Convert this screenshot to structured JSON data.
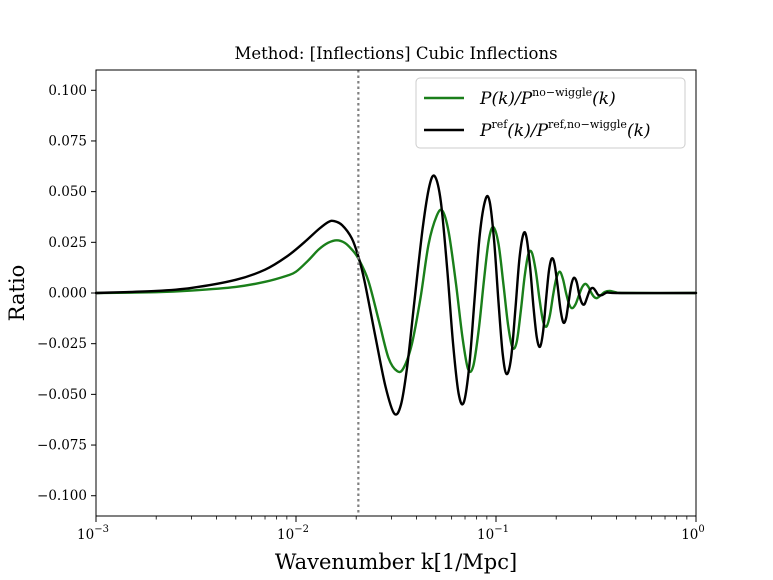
{
  "chart_data": {
    "type": "line",
    "title": "Method: [Inflections] Cubic Inflections",
    "xlabel": "Wavenumber k[1/Mpc]",
    "ylabel": "Ratio",
    "xscale": "log",
    "xlim": [
      0.001,
      1.0
    ],
    "ylim": [
      -0.11,
      0.11
    ],
    "yticks": [
      -0.1,
      -0.075,
      -0.05,
      -0.025,
      0.0,
      0.025,
      0.05,
      0.075,
      0.1
    ],
    "ytick_labels": [
      "−0.100",
      "−0.075",
      "−0.050",
      "−0.025",
      "0.000",
      "0.025",
      "0.050",
      "0.075",
      "0.100"
    ],
    "xticks": [
      0.001,
      0.01,
      0.1,
      1.0
    ],
    "xtick_labels": [
      {
        "base": "10",
        "exp": "−3"
      },
      {
        "base": "10",
        "exp": "−2"
      },
      {
        "base": "10",
        "exp": "−1"
      },
      {
        "base": "10",
        "exp": "0"
      }
    ],
    "vline": {
      "x": 0.0205,
      "style": "dotted",
      "color": "#808080"
    },
    "legend_position": "upper-right",
    "series": [
      {
        "name": "P(k)/P^no-wiggle(k)",
        "legend": {
          "main": "P(k)/P",
          "sup": "no−wiggle",
          "tail": "(k)"
        },
        "color": "#1a7f1a",
        "points": [
          [
            0.001,
            0.0
          ],
          [
            0.002,
            0.0004
          ],
          [
            0.003,
            0.0012
          ],
          [
            0.005,
            0.003
          ],
          [
            0.007,
            0.0055
          ],
          [
            0.009,
            0.0085
          ],
          [
            0.01,
            0.0105
          ],
          [
            0.0115,
            0.016
          ],
          [
            0.013,
            0.0215
          ],
          [
            0.0145,
            0.0248
          ],
          [
            0.016,
            0.026
          ],
          [
            0.0175,
            0.0248
          ],
          [
            0.019,
            0.0215
          ],
          [
            0.0205,
            0.017
          ],
          [
            0.023,
            0.006
          ],
          [
            0.026,
            -0.014
          ],
          [
            0.029,
            -0.032
          ],
          [
            0.032,
            -0.0385
          ],
          [
            0.0345,
            -0.037
          ],
          [
            0.038,
            -0.025
          ],
          [
            0.042,
            -0.002
          ],
          [
            0.046,
            0.024
          ],
          [
            0.0505,
            0.038
          ],
          [
            0.054,
            0.0405
          ],
          [
            0.058,
            0.03
          ],
          [
            0.063,
            0.005
          ],
          [
            0.068,
            -0.022
          ],
          [
            0.0725,
            -0.0375
          ],
          [
            0.077,
            -0.036
          ],
          [
            0.082,
            -0.018
          ],
          [
            0.087,
            0.006
          ],
          [
            0.092,
            0.026
          ],
          [
            0.097,
            0.0325
          ],
          [
            0.103,
            0.024
          ],
          [
            0.109,
            0.004
          ],
          [
            0.115,
            -0.016
          ],
          [
            0.121,
            -0.027
          ],
          [
            0.127,
            -0.024
          ],
          [
            0.133,
            -0.009
          ],
          [
            0.139,
            0.008
          ],
          [
            0.145,
            0.019
          ],
          [
            0.151,
            0.02
          ],
          [
            0.158,
            0.011
          ],
          [
            0.165,
            -0.003
          ],
          [
            0.172,
            -0.014
          ],
          [
            0.179,
            -0.0165
          ],
          [
            0.186,
            -0.011
          ],
          [
            0.193,
            -0.001
          ],
          [
            0.2,
            0.007
          ],
          [
            0.208,
            0.0105
          ],
          [
            0.216,
            0.007
          ],
          [
            0.224,
            0.0
          ],
          [
            0.232,
            -0.0055
          ],
          [
            0.24,
            -0.0075
          ],
          [
            0.25,
            -0.0055
          ],
          [
            0.26,
            -0.001
          ],
          [
            0.27,
            0.003
          ],
          [
            0.28,
            0.0045
          ],
          [
            0.29,
            0.003
          ],
          [
            0.3,
            0.0
          ],
          [
            0.31,
            -0.002
          ],
          [
            0.32,
            -0.0025
          ],
          [
            0.335,
            -0.001
          ],
          [
            0.35,
            0.0005
          ],
          [
            0.37,
            0.001
          ],
          [
            0.4,
            0.0003
          ],
          [
            0.45,
            0.0
          ],
          [
            1.0,
            0.0
          ]
        ]
      },
      {
        "name": "P^ref(k)/P^ref,no-wiggle(k)",
        "legend": {
          "main": "P",
          "sup": "ref",
          "mid": "(k)/P",
          "sup2": "ref,no−wiggle",
          "tail": "(k)"
        },
        "color": "#000000",
        "points": [
          [
            0.001,
            0.0
          ],
          [
            0.002,
            0.001
          ],
          [
            0.003,
            0.0025
          ],
          [
            0.005,
            0.0065
          ],
          [
            0.007,
            0.0115
          ],
          [
            0.009,
            0.018
          ],
          [
            0.011,
            0.025
          ],
          [
            0.013,
            0.0315
          ],
          [
            0.0145,
            0.035
          ],
          [
            0.0155,
            0.0355
          ],
          [
            0.017,
            0.0335
          ],
          [
            0.019,
            0.027
          ],
          [
            0.0205,
            0.018
          ],
          [
            0.022,
            0.006
          ],
          [
            0.025,
            -0.022
          ],
          [
            0.028,
            -0.046
          ],
          [
            0.031,
            -0.0595
          ],
          [
            0.0335,
            -0.055
          ],
          [
            0.036,
            -0.036
          ],
          [
            0.039,
            -0.005
          ],
          [
            0.043,
            0.032
          ],
          [
            0.0465,
            0.053
          ],
          [
            0.0495,
            0.0575
          ],
          [
            0.053,
            0.045
          ],
          [
            0.057,
            0.012
          ],
          [
            0.061,
            -0.025
          ],
          [
            0.065,
            -0.0495
          ],
          [
            0.069,
            -0.054
          ],
          [
            0.0735,
            -0.036
          ],
          [
            0.078,
            -0.004
          ],
          [
            0.083,
            0.029
          ],
          [
            0.0885,
            0.046
          ],
          [
            0.093,
            0.045
          ],
          [
            0.098,
            0.025
          ],
          [
            0.103,
            -0.005
          ],
          [
            0.108,
            -0.03
          ],
          [
            0.113,
            -0.04
          ],
          [
            0.119,
            -0.032
          ],
          [
            0.125,
            -0.008
          ],
          [
            0.131,
            0.017
          ],
          [
            0.137,
            0.029
          ],
          [
            0.142,
            0.0275
          ],
          [
            0.148,
            0.013
          ],
          [
            0.154,
            -0.007
          ],
          [
            0.16,
            -0.022
          ],
          [
            0.166,
            -0.0265
          ],
          [
            0.172,
            -0.019
          ],
          [
            0.178,
            -0.003
          ],
          [
            0.184,
            0.011
          ],
          [
            0.19,
            0.017
          ],
          [
            0.196,
            0.0145
          ],
          [
            0.203,
            0.004
          ],
          [
            0.21,
            -0.008
          ],
          [
            0.217,
            -0.0145
          ],
          [
            0.224,
            -0.0125
          ],
          [
            0.231,
            -0.004
          ],
          [
            0.238,
            0.004
          ],
          [
            0.245,
            0.0075
          ],
          [
            0.253,
            0.0055
          ],
          [
            0.261,
            -0.001
          ],
          [
            0.269,
            -0.005
          ],
          [
            0.277,
            -0.0055
          ],
          [
            0.286,
            -0.002
          ],
          [
            0.295,
            0.0015
          ],
          [
            0.305,
            0.0025
          ],
          [
            0.315,
            0.001
          ],
          [
            0.325,
            -0.001
          ],
          [
            0.34,
            -0.001
          ],
          [
            0.36,
            0.0003
          ],
          [
            0.4,
            0.0
          ],
          [
            1.0,
            0.0
          ]
        ]
      }
    ]
  }
}
